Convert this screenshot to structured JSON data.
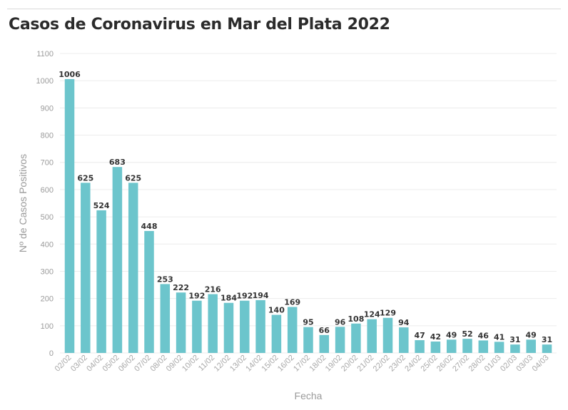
{
  "chart_data": {
    "type": "bar",
    "title": "Casos de Coronavirus en Mar del Plata 2022",
    "xlabel": "Fecha",
    "ylabel": "Nº de Casos Positivos",
    "ylim": [
      0,
      1100
    ],
    "yticks": [
      0,
      100,
      200,
      300,
      400,
      500,
      600,
      700,
      800,
      900,
      1000,
      1100
    ],
    "grid": true,
    "categories": [
      "02/02",
      "03/02",
      "04/02",
      "05/02",
      "06/02",
      "07/02",
      "08/02",
      "09/02",
      "10/02",
      "11/02",
      "12/02",
      "13/02",
      "14/02",
      "15/02",
      "16/02",
      "17/02",
      "18/02",
      "19/02",
      "20/02",
      "21/02",
      "22/02",
      "23/02",
      "24/02",
      "25/02",
      "26/02",
      "27/02",
      "28/02",
      "01/03",
      "02/03",
      "03/03",
      "04/03"
    ],
    "values": [
      1006,
      625,
      524,
      683,
      625,
      448,
      253,
      222,
      192,
      216,
      184,
      192,
      194,
      140,
      169,
      95,
      66,
      96,
      108,
      124,
      129,
      94,
      47,
      42,
      49,
      52,
      46,
      41,
      31,
      49,
      31
    ],
    "colors": {
      "bar": "#6cc5cc",
      "grid": "#ececec",
      "tick": "#9b9b9b",
      "label": "#333333"
    }
  }
}
